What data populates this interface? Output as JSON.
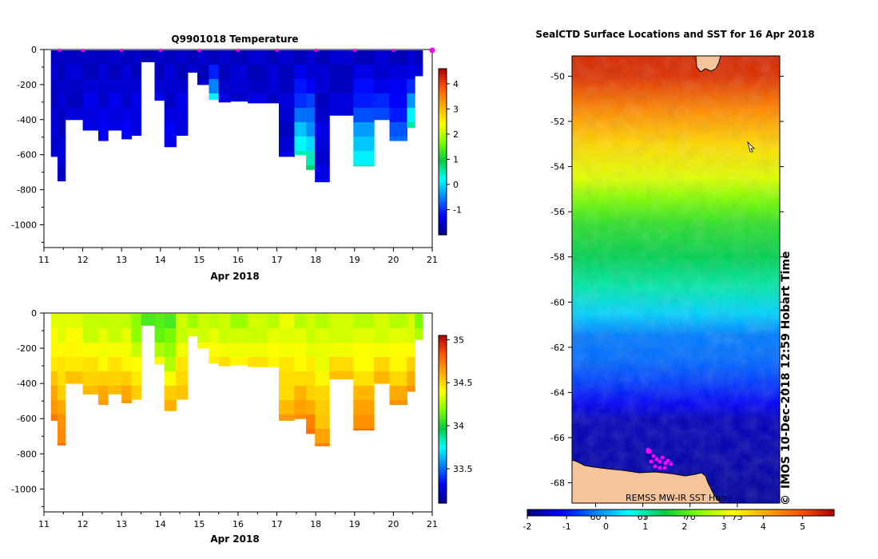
{
  "colors": {
    "jet": [
      "#00007f",
      "#0000ff",
      "#0080ff",
      "#00ffff",
      "#00cc44",
      "#7fff00",
      "#ffff00",
      "#ffaa00",
      "#ff5500",
      "#b00000"
    ],
    "land": "#f6c49a",
    "marker": "#ff00ff"
  },
  "chart_data": [
    {
      "id": "temperature",
      "type": "heatmap",
      "title": "Q9901018  Temperature",
      "xlabel": "Apr 2018",
      "ylabel": "",
      "xlim": [
        11,
        21
      ],
      "ylim": [
        -1130,
        0
      ],
      "xticks": [
        "11",
        "12",
        "13",
        "14",
        "15",
        "16",
        "17",
        "18",
        "19",
        "20",
        "21"
      ],
      "yticks": [
        "0",
        "-200",
        "-400",
        "-600",
        "-800",
        "-1000"
      ],
      "ytick_values": [
        0,
        -200,
        -400,
        -600,
        -800,
        -1000
      ],
      "colorbar": {
        "min": -2,
        "max": 4.6,
        "ticks": [
          "-1",
          "0",
          "1",
          "2",
          "3",
          "4"
        ],
        "tick_values": [
          -1,
          0,
          1,
          2,
          3,
          4
        ]
      },
      "surface_markers": [
        11.4,
        12.0,
        13.0,
        14.0,
        15.0,
        16.0,
        17.0,
        18.0,
        19.0,
        20.0,
        21.0
      ],
      "profiles": [
        {
          "x0": 11.18,
          "x1": 11.35,
          "depth": 610,
          "top": -1.6,
          "deep": -1.5
        },
        {
          "x0": 11.35,
          "x1": 11.55,
          "depth": 750,
          "top": -1.6,
          "deep": -1.5
        },
        {
          "x0": 11.55,
          "x1": 12.0,
          "depth": 400,
          "top": -1.6,
          "deep": -1.5
        },
        {
          "x0": 12.0,
          "x1": 12.4,
          "depth": 460,
          "top": -1.6,
          "deep": -1.3
        },
        {
          "x0": 12.4,
          "x1": 12.65,
          "depth": 520,
          "top": -1.6,
          "deep": -1.3
        },
        {
          "x0": 12.65,
          "x1": 13.0,
          "depth": 460,
          "top": -1.6,
          "deep": -1.3
        },
        {
          "x0": 13.0,
          "x1": 13.25,
          "depth": 510,
          "top": -1.6,
          "deep": -1.3
        },
        {
          "x0": 13.25,
          "x1": 13.5,
          "depth": 490,
          "top": -1.6,
          "deep": -1.3
        },
        {
          "x0": 13.5,
          "x1": 13.85,
          "depth": 70,
          "top": -1.6,
          "deep": -1.6
        },
        {
          "x0": 13.85,
          "x1": 14.1,
          "depth": 290,
          "top": -1.6,
          "deep": -1.4
        },
        {
          "x0": 14.1,
          "x1": 14.4,
          "depth": 555,
          "top": -1.6,
          "deep": -1.3
        },
        {
          "x0": 14.4,
          "x1": 14.7,
          "depth": 490,
          "top": -1.6,
          "deep": -1.3
        },
        {
          "x0": 14.7,
          "x1": 14.95,
          "depth": 130,
          "top": -1.6,
          "deep": -1.6
        },
        {
          "x0": 14.95,
          "x1": 15.25,
          "depth": 200,
          "top": -1.6,
          "deep": -1.5
        },
        {
          "x0": 15.25,
          "x1": 15.5,
          "depth": 285,
          "top": -1.6,
          "deep": 0.6
        },
        {
          "x0": 15.5,
          "x1": 15.8,
          "depth": 300,
          "top": -1.6,
          "deep": -1.5
        },
        {
          "x0": 15.8,
          "x1": 16.25,
          "depth": 295,
          "top": -1.6,
          "deep": -1.5
        },
        {
          "x0": 16.25,
          "x1": 16.75,
          "depth": 305,
          "top": -1.6,
          "deep": -1.5
        },
        {
          "x0": 16.75,
          "x1": 17.05,
          "depth": 305,
          "top": -1.6,
          "deep": -1.5
        },
        {
          "x0": 17.05,
          "x1": 17.45,
          "depth": 610,
          "top": -1.6,
          "deep": -1.5
        },
        {
          "x0": 17.45,
          "x1": 17.75,
          "depth": 600,
          "top": -1.6,
          "deep": 0.7
        },
        {
          "x0": 17.75,
          "x1": 17.98,
          "depth": 685,
          "top": -1.6,
          "deep": 0.9
        },
        {
          "x0": 17.98,
          "x1": 18.35,
          "depth": 755,
          "top": -1.6,
          "deep": -1.4
        },
        {
          "x0": 18.35,
          "x1": 18.97,
          "depth": 375,
          "top": -1.6,
          "deep": -1.5
        },
        {
          "x0": 18.97,
          "x1": 19.5,
          "depth": 665,
          "top": -1.6,
          "deep": 0.6
        },
        {
          "x0": 19.5,
          "x1": 19.9,
          "depth": 400,
          "top": -1.6,
          "deep": -0.7
        },
        {
          "x0": 19.9,
          "x1": 20.35,
          "depth": 520,
          "top": -1.6,
          "deep": -0.6
        },
        {
          "x0": 20.35,
          "x1": 20.55,
          "depth": 445,
          "top": -1.6,
          "deep": 0.9
        },
        {
          "x0": 20.55,
          "x1": 20.75,
          "depth": 150,
          "top": -1.6,
          "deep": -1.5
        }
      ]
    },
    {
      "id": "salinity",
      "type": "heatmap",
      "title": "",
      "xlabel": "Apr 2018",
      "ylabel": "",
      "xlim": [
        11,
        21
      ],
      "ylim": [
        -1130,
        0
      ],
      "xticks": [
        "11",
        "12",
        "13",
        "14",
        "15",
        "16",
        "17",
        "18",
        "19",
        "20",
        "21"
      ],
      "yticks": [
        "0",
        "-200",
        "-400",
        "-600",
        "-800",
        "-1000"
      ],
      "ytick_values": [
        0,
        -200,
        -400,
        -600,
        -800,
        -1000
      ],
      "colorbar": {
        "min": 33.1,
        "max": 35.05,
        "ticks": [
          "33.5",
          "34",
          "34.5",
          "35"
        ],
        "tick_values": [
          33.5,
          34,
          34.5,
          35
        ]
      },
      "profiles": [
        {
          "x0": 11.18,
          "x1": 11.35,
          "depth": 610,
          "top": 34.35,
          "deep": 34.8
        },
        {
          "x0": 11.35,
          "x1": 11.55,
          "depth": 750,
          "top": 34.35,
          "deep": 34.8
        },
        {
          "x0": 11.55,
          "x1": 12.0,
          "depth": 400,
          "top": 34.35,
          "deep": 34.6
        },
        {
          "x0": 12.0,
          "x1": 12.4,
          "depth": 460,
          "top": 34.3,
          "deep": 34.65
        },
        {
          "x0": 12.4,
          "x1": 12.65,
          "depth": 520,
          "top": 34.3,
          "deep": 34.7
        },
        {
          "x0": 12.65,
          "x1": 13.0,
          "depth": 460,
          "top": 34.3,
          "deep": 34.65
        },
        {
          "x0": 13.0,
          "x1": 13.25,
          "depth": 510,
          "top": 34.3,
          "deep": 34.7
        },
        {
          "x0": 13.25,
          "x1": 13.5,
          "depth": 490,
          "top": 34.2,
          "deep": 34.65
        },
        {
          "x0": 13.5,
          "x1": 13.85,
          "depth": 70,
          "top": 34.1,
          "deep": 34.2
        },
        {
          "x0": 13.85,
          "x1": 14.1,
          "depth": 290,
          "top": 34.1,
          "deep": 34.45
        },
        {
          "x0": 14.1,
          "x1": 14.4,
          "depth": 555,
          "top": 34.1,
          "deep": 34.7
        },
        {
          "x0": 14.4,
          "x1": 14.7,
          "depth": 490,
          "top": 34.3,
          "deep": 34.65
        },
        {
          "x0": 14.7,
          "x1": 14.95,
          "depth": 130,
          "top": 34.25,
          "deep": 34.35
        },
        {
          "x0": 14.95,
          "x1": 15.25,
          "depth": 200,
          "top": 34.3,
          "deep": 34.45
        },
        {
          "x0": 15.25,
          "x1": 15.5,
          "depth": 285,
          "top": 34.3,
          "deep": 34.5
        },
        {
          "x0": 15.5,
          "x1": 15.8,
          "depth": 300,
          "top": 34.3,
          "deep": 34.5
        },
        {
          "x0": 15.8,
          "x1": 16.25,
          "depth": 295,
          "top": 34.25,
          "deep": 34.5
        },
        {
          "x0": 16.25,
          "x1": 16.75,
          "depth": 305,
          "top": 34.3,
          "deep": 34.5
        },
        {
          "x0": 16.75,
          "x1": 17.05,
          "depth": 305,
          "top": 34.3,
          "deep": 34.5
        },
        {
          "x0": 17.05,
          "x1": 17.45,
          "depth": 610,
          "top": 34.35,
          "deep": 34.65
        },
        {
          "x0": 17.45,
          "x1": 17.75,
          "depth": 600,
          "top": 34.3,
          "deep": 34.75
        },
        {
          "x0": 17.75,
          "x1": 17.98,
          "depth": 685,
          "top": 34.3,
          "deep": 34.8
        },
        {
          "x0": 17.98,
          "x1": 18.35,
          "depth": 755,
          "top": 34.3,
          "deep": 34.7
        },
        {
          "x0": 18.35,
          "x1": 18.97,
          "depth": 375,
          "top": 34.3,
          "deep": 34.6
        },
        {
          "x0": 18.97,
          "x1": 19.5,
          "depth": 665,
          "top": 34.3,
          "deep": 34.8
        },
        {
          "x0": 19.5,
          "x1": 19.9,
          "depth": 400,
          "top": 34.3,
          "deep": 34.65
        },
        {
          "x0": 19.9,
          "x1": 20.35,
          "depth": 520,
          "top": 34.3,
          "deep": 34.7
        },
        {
          "x0": 20.35,
          "x1": 20.55,
          "depth": 445,
          "top": 34.3,
          "deep": 34.75
        },
        {
          "x0": 20.55,
          "x1": 20.75,
          "depth": 150,
          "top": 34.2,
          "deep": 34.3
        }
      ]
    },
    {
      "id": "sst_map",
      "type": "heatmap",
      "title": "SealCTD Surface Locations and SST for 16 Apr 2018",
      "ylim": [
        -68.9,
        -49.1
      ],
      "yticks": [
        "-50",
        "-52",
        "-54",
        "-56",
        "-58",
        "-60",
        "-62",
        "-64",
        "-66",
        "-68"
      ],
      "ytick_values": [
        -50,
        -52,
        -54,
        -56,
        -58,
        -60,
        -62,
        -64,
        -66,
        -68
      ],
      "colorbar": {
        "min": -2,
        "max": 5.8,
        "ticks": [
          "-2",
          "-1",
          "0",
          "1",
          "2",
          "3",
          "4",
          "5"
        ],
        "tick_values": [
          -2,
          -1,
          0,
          1,
          2,
          3,
          4,
          5
        ]
      },
      "lon_ticks": [
        "60",
        "65",
        "70",
        "75"
      ],
      "lon_tick_values": [
        60,
        65,
        70,
        75
      ],
      "lon_range": [
        57.5,
        79.5
      ],
      "sst_by_lat": [
        [
          -49,
          5.4
        ],
        [
          -50,
          5.3
        ],
        [
          -51.5,
          4.4
        ],
        [
          -53,
          3.6
        ],
        [
          -54.5,
          3.0
        ],
        [
          -55.5,
          2.3
        ],
        [
          -56.5,
          1.8
        ],
        [
          -58,
          1.4
        ],
        [
          -59.3,
          1.0
        ],
        [
          -60.5,
          0.3
        ],
        [
          -61.5,
          -0.3
        ],
        [
          -62.5,
          -0.4
        ],
        [
          -63.5,
          -0.7
        ],
        [
          -64.5,
          -1.2
        ],
        [
          -65.2,
          -1.6
        ],
        [
          -69,
          -1.8
        ]
      ],
      "credit": "IMOS 10-Dec-2018 12:59 Hobart Time",
      "copyright": "©",
      "source_note": "REMSS MW-IR SST Hob"
    }
  ]
}
